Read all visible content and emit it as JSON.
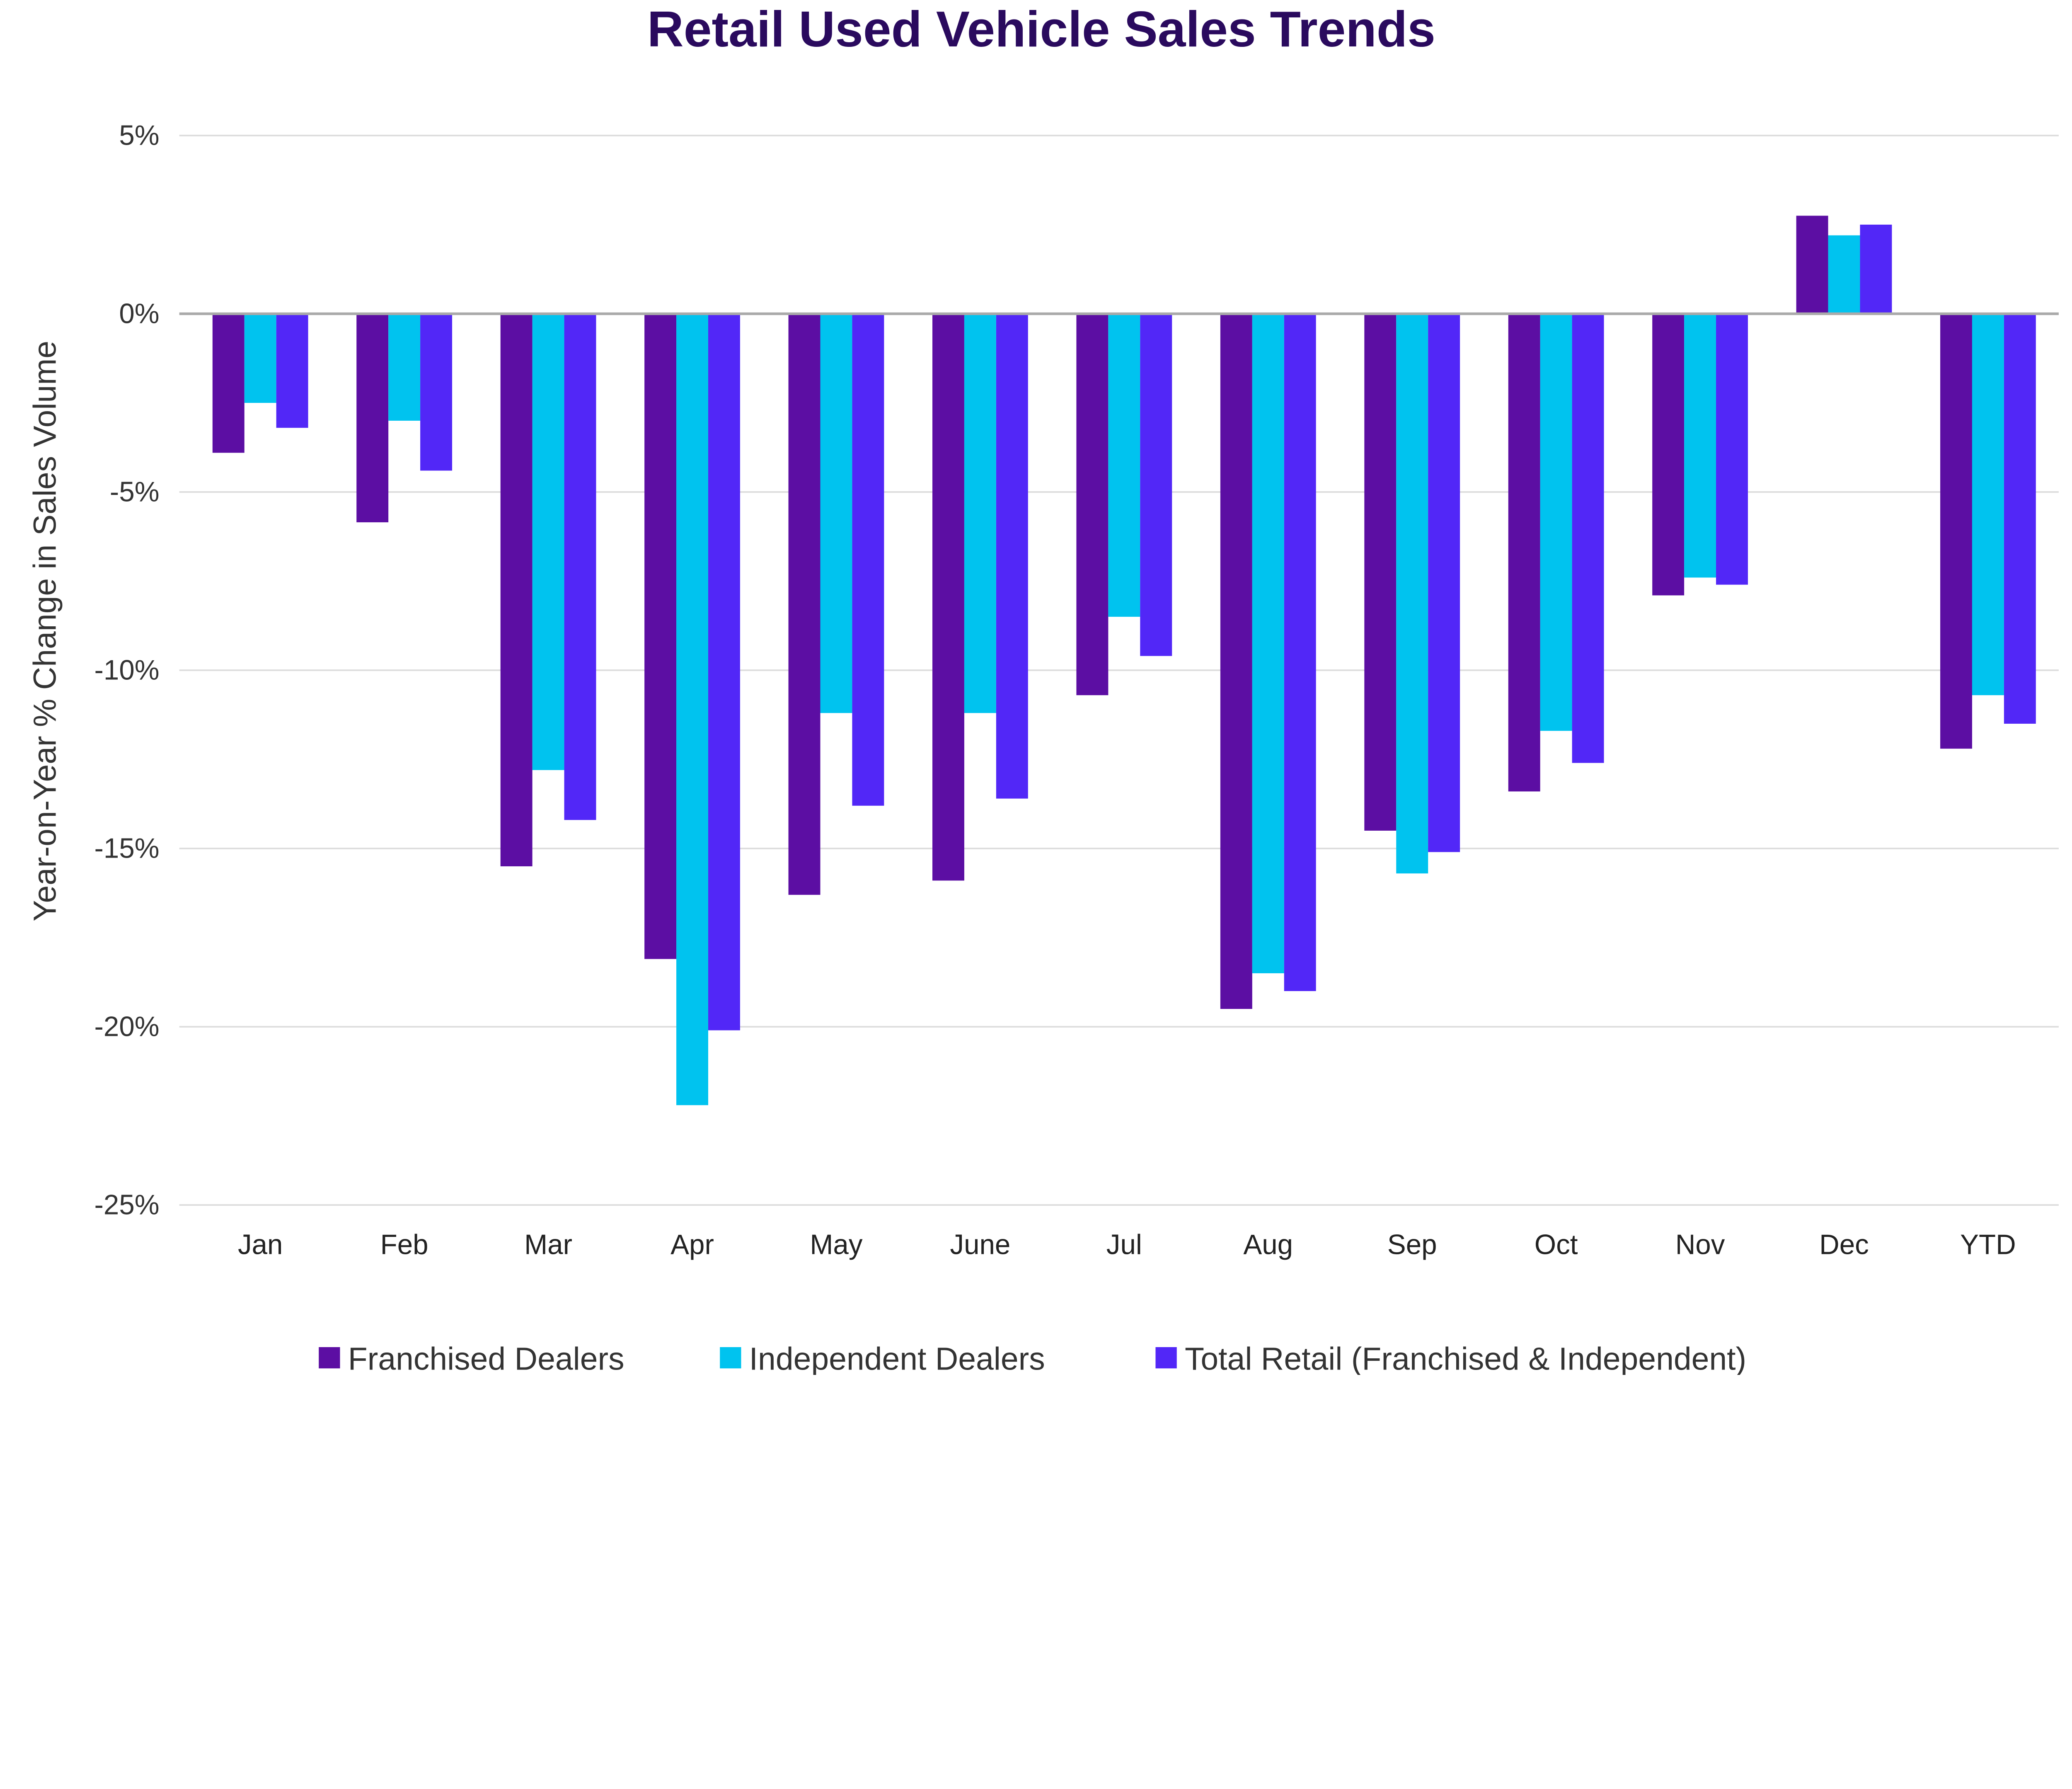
{
  "chart_data": {
    "type": "bar",
    "title": "Retail Used Vehicle Sales Trends",
    "xlabel": "",
    "ylabel": "Year-on-Year % Change in Sales Volume",
    "ylim": [
      -25,
      5
    ],
    "yticks": [
      5,
      0,
      -5,
      -10,
      -15,
      -20,
      -25
    ],
    "ytick_labels": [
      "5%",
      "0%",
      "-5%",
      "-10%",
      "-15%",
      "-20%",
      "-25%"
    ],
    "grid": true,
    "legend_position": "bottom",
    "categories": [
      "Jan",
      "Feb",
      "Mar",
      "Apr",
      "May",
      "June",
      "Jul",
      "Aug",
      "Sep",
      "Oct",
      "Nov",
      "Dec",
      "YTD"
    ],
    "series": [
      {
        "name": "Franchised Dealers",
        "color": "#5c0ea3",
        "values": [
          -3.9,
          -5.85,
          -15.5,
          -18.1,
          -16.3,
          -15.9,
          -10.7,
          -19.5,
          -14.5,
          -13.4,
          -7.9,
          2.75,
          -12.2
        ]
      },
      {
        "name": "Independent Dealers",
        "color": "#00c3ef",
        "values": [
          -2.5,
          -3.0,
          -12.8,
          -22.2,
          -11.2,
          -11.2,
          -8.5,
          -18.5,
          -15.7,
          -11.7,
          -7.4,
          2.2,
          -10.7
        ]
      },
      {
        "name": "Total Retail (Franchised & Independent)",
        "color": "#5227f7",
        "values": [
          -3.2,
          -4.4,
          -14.2,
          -20.1,
          -13.8,
          -13.6,
          -9.6,
          -19.0,
          -15.1,
          -12.6,
          -7.6,
          2.5,
          -11.5
        ]
      }
    ]
  }
}
